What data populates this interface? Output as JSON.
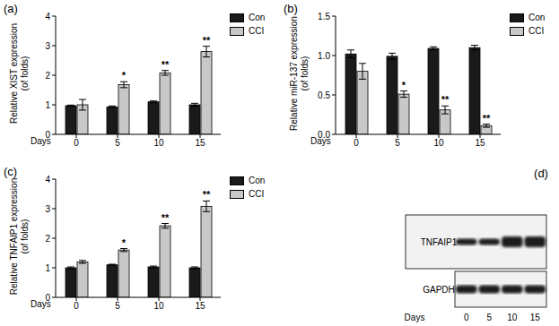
{
  "chart_data": [
    {
      "type": "bar",
      "panel_label": "(a)",
      "y_label": [
        "Relative XIST expression",
        "(of folds)"
      ],
      "x_label": "Days",
      "categories": [
        "0",
        "5",
        "10",
        "15"
      ],
      "series": [
        {
          "name": "Con",
          "color": "#1a1a1a",
          "values": [
            0.97,
            0.93,
            1.1,
            1.0
          ],
          "errors": [
            0.02,
            0.03,
            0.03,
            0.05
          ]
        },
        {
          "name": "CCI",
          "color": "#c8c8c8",
          "values": [
            1.0,
            1.68,
            2.08,
            2.8
          ],
          "errors": [
            0.18,
            0.1,
            0.08,
            0.18
          ],
          "annotations": [
            null,
            "*",
            "**",
            "**"
          ]
        }
      ],
      "ylim": [
        0,
        4
      ],
      "yticks": [
        0,
        1,
        2,
        3,
        4
      ],
      "legend": "upper right"
    },
    {
      "type": "bar",
      "panel_label": "(b)",
      "y_label": [
        "Relative miR-137 expression",
        "(of folds)"
      ],
      "x_label": "Days",
      "categories": [
        "0",
        "5",
        "10",
        "15"
      ],
      "series": [
        {
          "name": "Con",
          "color": "#1a1a1a",
          "values": [
            1.02,
            0.99,
            1.09,
            1.1
          ],
          "errors": [
            0.05,
            0.04,
            0.02,
            0.03
          ]
        },
        {
          "name": "CCI",
          "color": "#c8c8c8",
          "values": [
            0.8,
            0.51,
            0.31,
            0.11
          ],
          "errors": [
            0.1,
            0.04,
            0.05,
            0.02
          ],
          "annotations": [
            null,
            "*",
            "**",
            "**"
          ]
        }
      ],
      "ylim": [
        0,
        1.5
      ],
      "yticks": [
        {
          "value": 0,
          "label": "0.0"
        },
        0.5,
        {
          "value": 1,
          "label": "1.0"
        },
        1.5
      ],
      "legend": "upper right"
    },
    {
      "type": "bar",
      "panel_label": "(c)",
      "y_label": [
        "Relative TNFAIP1 expression",
        "(of folds)"
      ],
      "x_label": "Days",
      "categories": [
        "0",
        "5",
        "10",
        "15"
      ],
      "series": [
        {
          "name": "Con",
          "color": "#1a1a1a",
          "values": [
            1.0,
            1.1,
            1.03,
            1.0
          ],
          "errors": [
            0.03,
            0.02,
            0.03,
            0.03
          ]
        },
        {
          "name": "CCI",
          "color": "#c8c8c8",
          "values": [
            1.2,
            1.6,
            2.42,
            3.08
          ],
          "errors": [
            0.05,
            0.05,
            0.08,
            0.18
          ],
          "annotations": [
            null,
            "*",
            "**",
            "**"
          ]
        }
      ],
      "ylim": [
        0,
        4
      ],
      "yticks": [
        0,
        1,
        2,
        3,
        4
      ],
      "legend": "upper right"
    },
    {
      "type": "blot",
      "panel_label": "(d)",
      "x_label": "Days",
      "categories": [
        "0",
        "5",
        "10",
        "15"
      ],
      "bands": [
        "TNFAIP1",
        "GAPDH"
      ]
    }
  ]
}
